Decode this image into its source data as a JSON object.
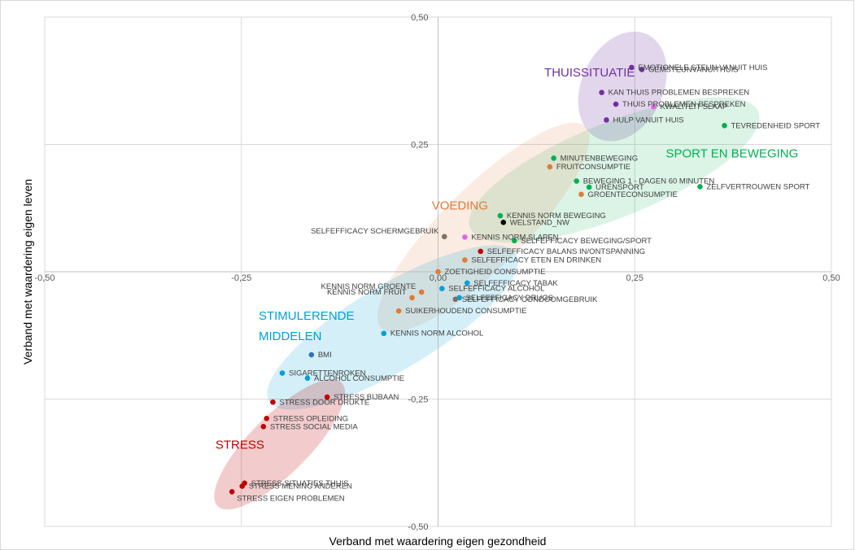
{
  "chart_data": {
    "type": "scatter",
    "xlabel": "Verband met waardering eigen gezondheid",
    "ylabel": "Verband met waardering eigen leven",
    "xlim": [
      -0.5,
      0.5
    ],
    "ylim": [
      -0.5,
      0.5
    ],
    "xticks": [
      -0.5,
      -0.25,
      0,
      0.25,
      0.5
    ],
    "yticks": [
      -0.5,
      -0.25,
      0,
      0.25,
      0.5
    ],
    "xtick_labels": [
      "-0,50",
      "-0,25",
      "0,00",
      "0,25",
      "0,50"
    ],
    "ytick_labels": [
      "-0,50",
      "-0,25",
      "0,00",
      "0,25",
      "0,50"
    ],
    "grid": true,
    "colors": {
      "thuissituatie": "#7030a0",
      "sport": "#00b050",
      "voeding": "#e07b39",
      "stimulerend": "#00a0d6",
      "stress": "#c00000",
      "pink": "#e066e0",
      "gray": "#7f6f63",
      "black": "#000000",
      "navy": "#2e75b6"
    },
    "groups": [
      {
        "name": "THUISSITUATIE",
        "color": "#7030a0"
      },
      {
        "name": "SPORT EN BEWEGING",
        "color": "#00b050"
      },
      {
        "name": "VOEDING",
        "color": "#e07b39"
      },
      {
        "name": "STIMULERENDE",
        "color": "#00a0d6"
      },
      {
        "name": "MIDDELEN",
        "color": "#00a0d6"
      },
      {
        "name": "STRESS",
        "color": "#c00000"
      }
    ],
    "points": [
      {
        "label": "EMOTIONELE STEUN VANUIT HUIS",
        "x": 0.246,
        "y": 0.401,
        "color": "#7030a0"
      },
      {
        "label": "GEMSTEUNVANUITHUIS",
        "x": 0.259,
        "y": 0.397,
        "color": "#7030a0"
      },
      {
        "label": "KAN THUIS PROBLEMEN BESPREKEN",
        "x": 0.208,
        "y": 0.352,
        "color": "#7030a0"
      },
      {
        "label": "THUIS PROBLEMEN BESPREKEN",
        "x": 0.226,
        "y": 0.329,
        "color": "#7030a0"
      },
      {
        "label": "KWALITEIT SLAAP",
        "x": 0.274,
        "y": 0.324,
        "color": "#e066e0"
      },
      {
        "label": "HULP VANUIT HUIS",
        "x": 0.214,
        "y": 0.298,
        "color": "#7030a0"
      },
      {
        "label": "TEVREDENHEID SPORT",
        "x": 0.364,
        "y": 0.287,
        "color": "#00b050"
      },
      {
        "label": "MINUTENBEWEGING",
        "x": 0.147,
        "y": 0.223,
        "color": "#00b050"
      },
      {
        "label": "FRUITCONSUMPTIE",
        "x": 0.142,
        "y": 0.206,
        "color": "#e07b39"
      },
      {
        "label": "BEWEGING 1 - DAGEN 60 MINUTEN",
        "x": 0.176,
        "y": 0.178,
        "color": "#00b050"
      },
      {
        "label": "URENSPORT",
        "x": 0.192,
        "y": 0.166,
        "color": "#00b050"
      },
      {
        "label": "ZELFVERTROUWEN SPORT",
        "x": 0.333,
        "y": 0.167,
        "color": "#00b050"
      },
      {
        "label": "GROENTECONSUMPTIE",
        "x": 0.182,
        "y": 0.152,
        "color": "#e07b39"
      },
      {
        "label": "KENNIS NORM BEWEGING",
        "x": 0.079,
        "y": 0.11,
        "color": "#00b050"
      },
      {
        "label": "WELSTAND_NW",
        "x": 0.083,
        "y": 0.097,
        "color": "#000000"
      },
      {
        "label": "SELFEFFICACY SCHERMGEBRUIK",
        "x": 0.008,
        "y": 0.069,
        "color": "#7f6f63"
      },
      {
        "label": "KENNIS NORM SLAPEN",
        "x": 0.034,
        "y": 0.068,
        "color": "#e066e0"
      },
      {
        "label": "SELFEFFICACY BEWEGING/SPORT",
        "x": 0.097,
        "y": 0.061,
        "color": "#00b050"
      },
      {
        "label": "SELFEFFICACY BALANS IN/ONTSPANNING",
        "x": 0.054,
        "y": 0.04,
        "color": "#c00000"
      },
      {
        "label": "SELFEFFICACY ETEN EN DRINKEN",
        "x": 0.034,
        "y": 0.023,
        "color": "#e07b39"
      },
      {
        "label": "ZOETIGHEID CONSUMPTIE",
        "x": 0.0,
        "y": 0.0,
        "color": "#e07b39"
      },
      {
        "label": "SELFEFFICACY TABAK",
        "x": 0.037,
        "y": -0.022,
        "color": "#00a0d6"
      },
      {
        "label": "SELFEFFICACY ALCOHOL",
        "x": 0.005,
        "y": -0.033,
        "color": "#00a0d6"
      },
      {
        "label": "KENNIS NORM GROENTE",
        "x": -0.021,
        "y": -0.04,
        "color": "#e07b39"
      },
      {
        "label": "KENNIS NORM FRUIT",
        "x": -0.033,
        "y": -0.051,
        "color": "#e07b39"
      },
      {
        "label": "SELFEFFICACY DRUGS",
        "x": 0.027,
        "y": -0.051,
        "color": "#00a0d6"
      },
      {
        "label": "SELFEFFICACY CONDOOMGEBRUIK",
        "x": 0.022,
        "y": -0.054,
        "color": "#7f6f63"
      },
      {
        "label": "SUIKERHOUDEND CONSUMPTIE",
        "x": -0.05,
        "y": -0.077,
        "color": "#e07b39"
      },
      {
        "label": "KENNIS NORM ALCOHOL",
        "x": -0.069,
        "y": -0.121,
        "color": "#00a0d6"
      },
      {
        "label": "BMI",
        "x": -0.161,
        "y": -0.163,
        "color": "#2e75b6"
      },
      {
        "label": "SIGARETTENROKEN",
        "x": -0.198,
        "y": -0.199,
        "color": "#00a0d6"
      },
      {
        "label": "ALCOHOL CONSUMPTIE",
        "x": -0.166,
        "y": -0.209,
        "color": "#00a0d6"
      },
      {
        "label": "STRESS BIJBAAN",
        "x": -0.141,
        "y": -0.246,
        "color": "#c00000"
      },
      {
        "label": "STRESS DOOR DRUKTE",
        "x": -0.21,
        "y": -0.256,
        "color": "#c00000"
      },
      {
        "label": "STRESS OPLEIDING",
        "x": -0.218,
        "y": -0.288,
        "color": "#c00000"
      },
      {
        "label": "STRESS SOCIAL MEDIA",
        "x": -0.222,
        "y": -0.304,
        "color": "#c00000"
      },
      {
        "label": "STRESS SITUATIES THUIS",
        "x": -0.246,
        "y": -0.415,
        "color": "#c00000"
      },
      {
        "label": "STRESS MENING ANDEREN",
        "x": -0.249,
        "y": -0.421,
        "color": "#c00000"
      },
      {
        "label": "STRESS EIGEN PROBLEMEN",
        "x": -0.262,
        "y": -0.432,
        "color": "#c00000"
      }
    ]
  }
}
